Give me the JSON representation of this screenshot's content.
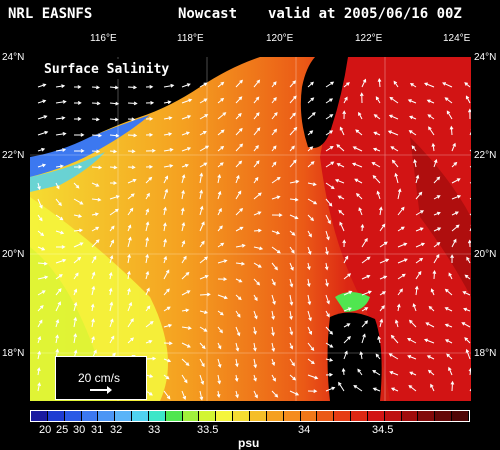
{
  "header": {
    "model": "NRL EASNFS",
    "product": "Nowcast",
    "valid": "valid at 2005/06/16 00Z"
  },
  "map": {
    "title": "Surface Salinity",
    "lon_ticks": [
      "116°E",
      "118°E",
      "120°E",
      "122°E",
      "124°E"
    ],
    "lat_ticks_left": [
      "24°N",
      "22°N",
      "20°N",
      "18°N"
    ],
    "lat_ticks_right": [
      "24°N",
      "22°N",
      "20°N",
      "18°N"
    ],
    "colors": {
      "land": "#000000",
      "vectors": "#ffffff"
    }
  },
  "scale": {
    "label": "20 cm/s"
  },
  "colorbar": {
    "colors": [
      "#1a1aa0",
      "#1e3cd2",
      "#2a5ae6",
      "#3c78f0",
      "#4c96f5",
      "#5ab4f8",
      "#50d2f0",
      "#3ce6c8",
      "#50e650",
      "#a0f03c",
      "#d2f532",
      "#f5f53c",
      "#f5dc32",
      "#f5be28",
      "#f5a020",
      "#f58c1e",
      "#f0781a",
      "#eb5a16",
      "#e63c14",
      "#dc2814",
      "#d21414",
      "#be1010",
      "#a00c0c",
      "#820a0a",
      "#640808",
      "#500606"
    ],
    "labels": [
      "20",
      "25",
      "30",
      "31",
      "32",
      "33",
      "33.5",
      "34",
      "34.5"
    ],
    "unit": "psu"
  }
}
